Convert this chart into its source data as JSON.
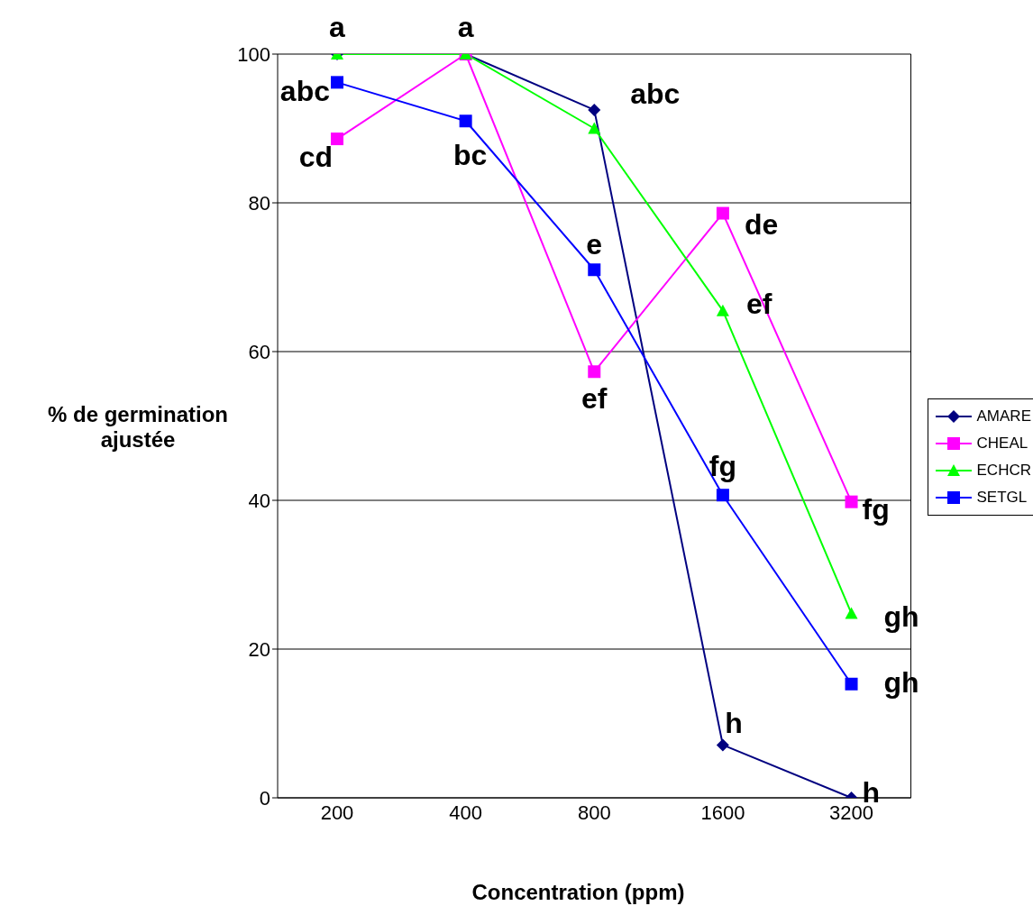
{
  "chart_data": {
    "type": "line",
    "xlabel": "Concentration (ppm)",
    "ylabel": "% de germination ajustée",
    "categories": [
      "200",
      "400",
      "800",
      "1600",
      "3200"
    ],
    "series": [
      {
        "name": "AMARE",
        "color": "#000080",
        "marker": "diamond",
        "values": [
          100,
          100,
          92.5,
          7.1,
          0
        ]
      },
      {
        "name": "CHEAL",
        "color": "#ff00ff",
        "marker": "square",
        "values": [
          88.6,
          100,
          57.3,
          78.6,
          39.8
        ]
      },
      {
        "name": "ECHCR",
        "color": "#00ff00",
        "marker": "triangle",
        "values": [
          100,
          100,
          90,
          65.5,
          24.8
        ]
      },
      {
        "name": "SETGL",
        "color": "#0000ff",
        "marker": "square",
        "values": [
          96.2,
          91,
          71,
          40.7,
          15.3
        ]
      }
    ],
    "ylim": [
      0,
      100
    ],
    "yticks": [
      0,
      20,
      40,
      60,
      80,
      100
    ],
    "grid": "y",
    "legend": "right",
    "line_style": "solid",
    "annotations": [
      {
        "text": "a",
        "x": "200",
        "y": 100
      },
      {
        "text": "a",
        "x": "400",
        "y": 100
      },
      {
        "text": "abc",
        "x": "200",
        "y": 96.2
      },
      {
        "text": "cd",
        "x": "200",
        "y": 88.6
      },
      {
        "text": "bc",
        "x": "400",
        "y": 91
      },
      {
        "text": "abc",
        "x": "800",
        "y": 92.5
      },
      {
        "text": "e",
        "x": "800",
        "y": 71
      },
      {
        "text": "ef",
        "x": "800",
        "y": 57.3
      },
      {
        "text": "de",
        "x": "1600",
        "y": 78.6
      },
      {
        "text": "ef",
        "x": "1600",
        "y": 65.5
      },
      {
        "text": "fg",
        "x": "1600",
        "y": 40.7
      },
      {
        "text": "h",
        "x": "1600",
        "y": 7.1
      },
      {
        "text": "fg",
        "x": "3200",
        "y": 39.8
      },
      {
        "text": "gh",
        "x": "3200",
        "y": 24.8
      },
      {
        "text": "gh",
        "x": "3200",
        "y": 15.3
      },
      {
        "text": "h",
        "x": "3200",
        "y": 0
      }
    ]
  }
}
